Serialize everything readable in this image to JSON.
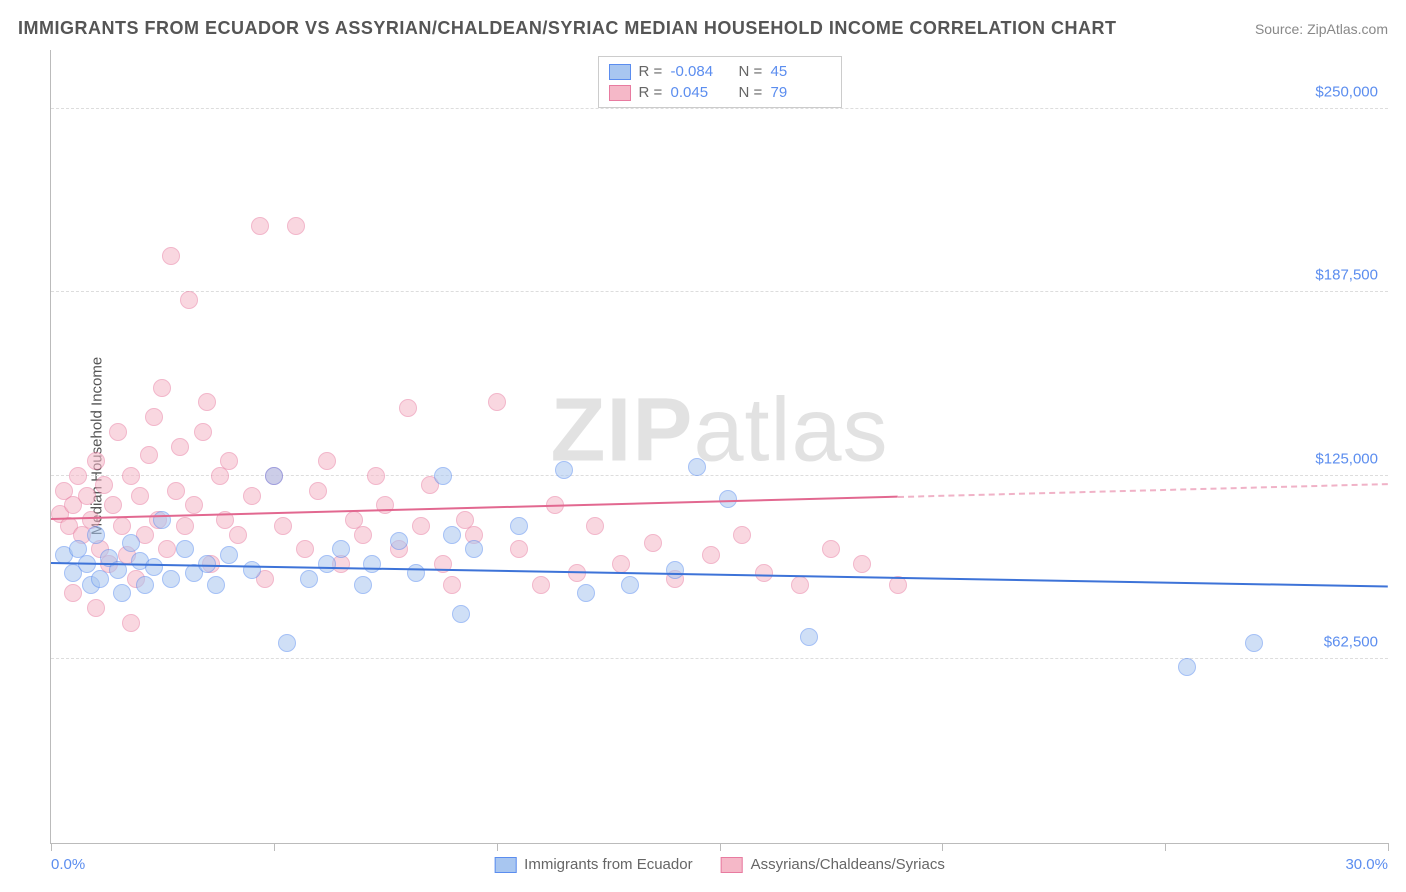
{
  "title": "IMMIGRANTS FROM ECUADOR VS ASSYRIAN/CHALDEAN/SYRIAC MEDIAN HOUSEHOLD INCOME CORRELATION CHART",
  "source": "Source: ZipAtlas.com",
  "yaxis_label": "Median Household Income",
  "watermark_a": "ZIP",
  "watermark_b": "atlas",
  "chart": {
    "type": "scatter",
    "xlim": [
      0,
      30
    ],
    "ylim": [
      0,
      270000
    ],
    "x_min_label": "0.0%",
    "x_max_label": "30.0%",
    "x_ticks": [
      0,
      5,
      10,
      15,
      20,
      25,
      30
    ],
    "y_gridlines": [
      62500,
      125000,
      187500,
      250000
    ],
    "y_tick_labels": [
      "$62,500",
      "$125,000",
      "$187,500",
      "$250,000"
    ],
    "background_color": "#ffffff",
    "grid_color": "#dddddd",
    "axis_color": "#bbbbbb",
    "tick_label_color": "#5b8def",
    "point_radius": 9,
    "point_opacity": 0.55,
    "series": [
      {
        "name": "Immigrants from Ecuador",
        "fill": "#a8c6f0",
        "stroke": "#5b8def",
        "r_label": "R =",
        "r_value": "-0.084",
        "n_label": "N =",
        "n_value": "45",
        "trend": {
          "y_at_xmin": 95000,
          "y_at_xmax": 87000,
          "color": "#3d73d8",
          "dash_from_x": 30
        },
        "points": [
          [
            0.3,
            98000
          ],
          [
            0.5,
            92000
          ],
          [
            0.6,
            100000
          ],
          [
            0.8,
            95000
          ],
          [
            0.9,
            88000
          ],
          [
            1.0,
            105000
          ],
          [
            1.1,
            90000
          ],
          [
            1.3,
            97000
          ],
          [
            1.5,
            93000
          ],
          [
            1.6,
            85000
          ],
          [
            1.8,
            102000
          ],
          [
            2.0,
            96000
          ],
          [
            2.1,
            88000
          ],
          [
            2.3,
            94000
          ],
          [
            2.5,
            110000
          ],
          [
            2.7,
            90000
          ],
          [
            3.0,
            100000
          ],
          [
            3.2,
            92000
          ],
          [
            3.5,
            95000
          ],
          [
            3.7,
            88000
          ],
          [
            4.0,
            98000
          ],
          [
            4.5,
            93000
          ],
          [
            5.0,
            125000
          ],
          [
            5.3,
            68000
          ],
          [
            5.8,
            90000
          ],
          [
            6.2,
            95000
          ],
          [
            6.5,
            100000
          ],
          [
            7.0,
            88000
          ],
          [
            7.2,
            95000
          ],
          [
            7.8,
            103000
          ],
          [
            8.2,
            92000
          ],
          [
            8.8,
            125000
          ],
          [
            9.0,
            105000
          ],
          [
            9.2,
            78000
          ],
          [
            9.5,
            100000
          ],
          [
            10.5,
            108000
          ],
          [
            11.5,
            127000
          ],
          [
            12.0,
            85000
          ],
          [
            13.0,
            88000
          ],
          [
            14.0,
            93000
          ],
          [
            14.5,
            128000
          ],
          [
            15.2,
            117000
          ],
          [
            17.0,
            70000
          ],
          [
            25.5,
            60000
          ],
          [
            27.0,
            68000
          ]
        ]
      },
      {
        "name": "Assyrians/Chaldeans/Syriacs",
        "fill": "#f5b8c8",
        "stroke": "#e87ba0",
        "r_label": "R =",
        "r_value": "0.045",
        "n_label": "N =",
        "n_value": "79",
        "trend": {
          "y_at_xmin": 110000,
          "y_at_xmax": 122000,
          "color": "#e26890",
          "dash_from_x": 19
        },
        "points": [
          [
            0.2,
            112000
          ],
          [
            0.3,
            120000
          ],
          [
            0.4,
            108000
          ],
          [
            0.5,
            115000
          ],
          [
            0.6,
            125000
          ],
          [
            0.7,
            105000
          ],
          [
            0.8,
            118000
          ],
          [
            0.9,
            110000
          ],
          [
            1.0,
            130000
          ],
          [
            1.1,
            100000
          ],
          [
            1.2,
            122000
          ],
          [
            1.3,
            95000
          ],
          [
            1.4,
            115000
          ],
          [
            1.5,
            140000
          ],
          [
            1.6,
            108000
          ],
          [
            1.7,
            98000
          ],
          [
            1.8,
            125000
          ],
          [
            1.9,
            90000
          ],
          [
            2.0,
            118000
          ],
          [
            2.1,
            105000
          ],
          [
            2.2,
            132000
          ],
          [
            2.3,
            145000
          ],
          [
            2.4,
            110000
          ],
          [
            2.5,
            155000
          ],
          [
            2.6,
            100000
          ],
          [
            2.7,
            200000
          ],
          [
            2.8,
            120000
          ],
          [
            2.9,
            135000
          ],
          [
            3.0,
            108000
          ],
          [
            3.1,
            185000
          ],
          [
            3.2,
            115000
          ],
          [
            3.4,
            140000
          ],
          [
            3.5,
            150000
          ],
          [
            3.6,
            95000
          ],
          [
            3.8,
            125000
          ],
          [
            3.9,
            110000
          ],
          [
            4.0,
            130000
          ],
          [
            4.2,
            105000
          ],
          [
            4.5,
            118000
          ],
          [
            4.7,
            210000
          ],
          [
            4.8,
            90000
          ],
          [
            5.0,
            125000
          ],
          [
            5.2,
            108000
          ],
          [
            5.5,
            210000
          ],
          [
            5.7,
            100000
          ],
          [
            6.0,
            120000
          ],
          [
            6.2,
            130000
          ],
          [
            6.5,
            95000
          ],
          [
            6.8,
            110000
          ],
          [
            7.0,
            105000
          ],
          [
            7.3,
            125000
          ],
          [
            7.5,
            115000
          ],
          [
            7.8,
            100000
          ],
          [
            8.0,
            148000
          ],
          [
            8.3,
            108000
          ],
          [
            8.5,
            122000
          ],
          [
            8.8,
            95000
          ],
          [
            9.0,
            88000
          ],
          [
            9.3,
            110000
          ],
          [
            9.5,
            105000
          ],
          [
            10.0,
            150000
          ],
          [
            10.5,
            100000
          ],
          [
            11.0,
            88000
          ],
          [
            11.3,
            115000
          ],
          [
            11.8,
            92000
          ],
          [
            12.2,
            108000
          ],
          [
            12.8,
            95000
          ],
          [
            13.5,
            102000
          ],
          [
            14.0,
            90000
          ],
          [
            14.8,
            98000
          ],
          [
            15.5,
            105000
          ],
          [
            16.0,
            92000
          ],
          [
            16.8,
            88000
          ],
          [
            17.5,
            100000
          ],
          [
            18.2,
            95000
          ],
          [
            19.0,
            88000
          ],
          [
            0.5,
            85000
          ],
          [
            1.0,
            80000
          ],
          [
            1.8,
            75000
          ]
        ]
      }
    ]
  }
}
